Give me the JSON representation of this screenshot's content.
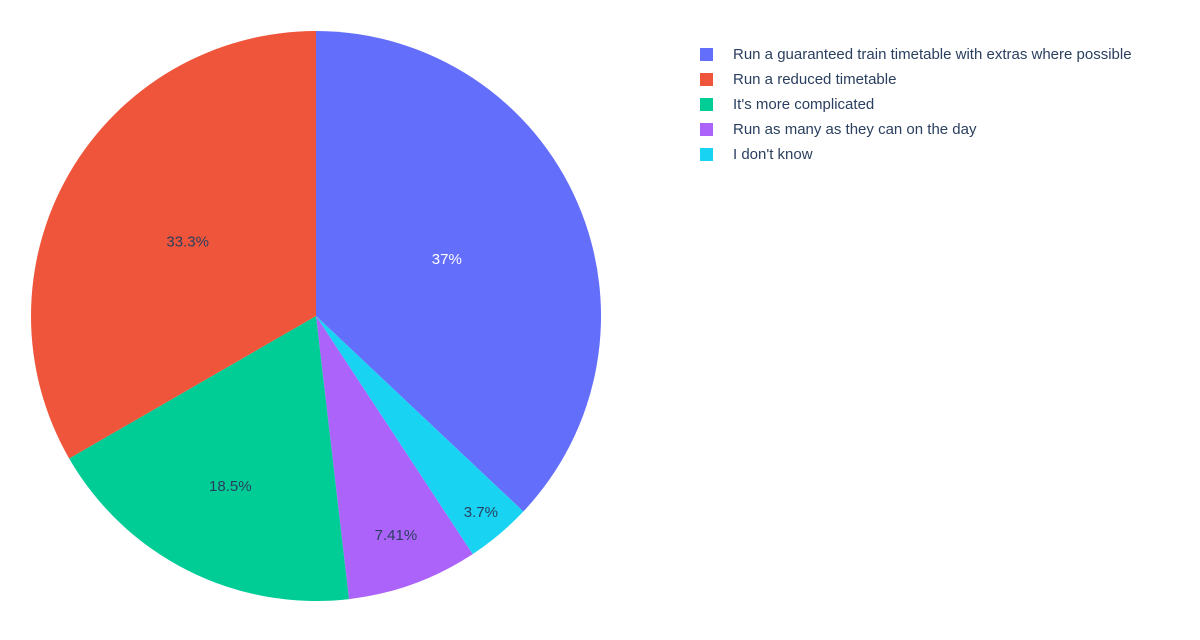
{
  "figure": {
    "background": "#FFFFFF",
    "text_color": "#2A3F5F"
  },
  "chart_data": {
    "type": "pie",
    "title": "",
    "slices": [
      {
        "label": "Run a guaranteed train timetable with extras where possible",
        "value": 37,
        "pct_text": "37%",
        "color": "#636EFA",
        "pct_text_color": "#FFFFFF"
      },
      {
        "label": "Run a reduced timetable",
        "value": 33.3,
        "pct_text": "33.3%",
        "color": "#EF553B",
        "pct_text_color": "#2A3F5F"
      },
      {
        "label": "It's more complicated",
        "value": 18.5,
        "pct_text": "18.5%",
        "color": "#00CC96",
        "pct_text_color": "#2A3F5F"
      },
      {
        "label": "Run as many as they can on the day",
        "value": 7.41,
        "pct_text": "7.41%",
        "color": "#AB63FA",
        "pct_text_color": "#2A3F5F"
      },
      {
        "label": "I don't know",
        "value": 3.7,
        "pct_text": "3.7%",
        "color": "#19D3F3",
        "pct_text_color": "#2A3F5F"
      }
    ],
    "layout_hints": {
      "legend_position": "top-right",
      "first_slice_start": "12-o'clock",
      "first_slice_direction": "clockwise",
      "remaining_slices_direction": "counterclockwise",
      "labels_inside": true,
      "grid": false
    }
  }
}
